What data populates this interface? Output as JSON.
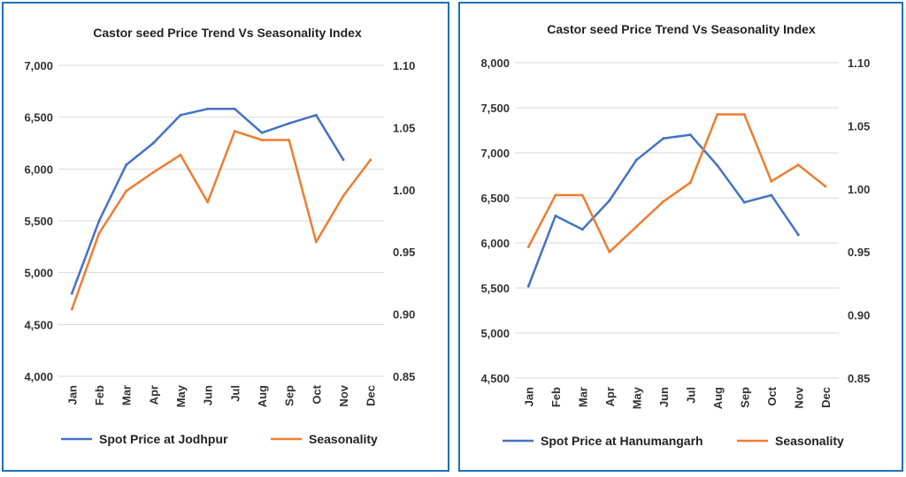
{
  "colors": {
    "primary": "#4472c4",
    "seasonality": "#ed7d31",
    "border": "#1f6fb8"
  },
  "chart_data": [
    {
      "type": "line",
      "title": "Castor seed Price Trend Vs Seasonality Index",
      "categories": [
        "Jan",
        "Feb",
        "Mar",
        "Apr",
        "May",
        "Jun",
        "Jul",
        "Aug",
        "Sep",
        "Oct",
        "Nov",
        "Dec"
      ],
      "y_left": {
        "range": [
          4000,
          7000
        ],
        "ticks": [
          "4,000",
          "4,500",
          "5,000",
          "5,500",
          "6,000",
          "6,500",
          "7,000"
        ],
        "tick_values": [
          4000,
          4500,
          5000,
          5500,
          6000,
          6500,
          7000
        ]
      },
      "y_right": {
        "range": [
          0.85,
          1.1
        ],
        "ticks": [
          "0.85",
          "0.90",
          "0.95",
          "1.00",
          "1.05",
          "1.10"
        ],
        "tick_values": [
          0.85,
          0.9,
          0.95,
          1.0,
          1.05,
          1.1
        ]
      },
      "grid": true,
      "legend_position": "bottom",
      "series": [
        {
          "name": "Spot Price at Jodhpur",
          "axis": "left",
          "color": "#4472c4",
          "values": [
            4800,
            5500,
            6040,
            6250,
            6520,
            6580,
            6580,
            6350,
            6440,
            6520,
            6090,
            null
          ]
        },
        {
          "name": "Seasonality",
          "axis": "right",
          "color": "#ed7d31",
          "values": [
            0.904,
            0.965,
            0.999,
            1.014,
            1.028,
            0.99,
            1.047,
            1.04,
            1.04,
            0.958,
            0.995,
            1.024
          ]
        }
      ]
    },
    {
      "type": "line",
      "title": "Castor seed Price Trend Vs Seasonality Index",
      "categories": [
        "Jan",
        "Feb",
        "Mar",
        "Apr",
        "May",
        "Jun",
        "Jul",
        "Aug",
        "Sep",
        "Oct",
        "Nov",
        "Dec"
      ],
      "y_left": {
        "range": [
          4500,
          8000
        ],
        "ticks": [
          "4,500",
          "5,000",
          "5,500",
          "6,000",
          "6,500",
          "7,000",
          "7,500",
          "8,000"
        ],
        "tick_values": [
          4500,
          5000,
          5500,
          6000,
          6500,
          7000,
          7500,
          8000
        ]
      },
      "y_right": {
        "range": [
          0.85,
          1.1
        ],
        "ticks": [
          "0.85",
          "0.90",
          "0.95",
          "1.00",
          "1.05",
          "1.10"
        ],
        "tick_values": [
          0.85,
          0.9,
          0.95,
          1.0,
          1.05,
          1.1
        ]
      },
      "grid": true,
      "legend_position": "bottom",
      "series": [
        {
          "name": "Spot Price at Hanumangarh",
          "axis": "left",
          "color": "#4472c4",
          "values": [
            5520,
            6300,
            6150,
            6470,
            6920,
            7160,
            7200,
            6860,
            6450,
            6530,
            6090,
            null
          ]
        },
        {
          "name": "Seasonality",
          "axis": "right",
          "color": "#ed7d31",
          "values": [
            0.954,
            0.995,
            0.995,
            0.95,
            0.97,
            0.99,
            1.005,
            1.059,
            1.059,
            1.006,
            1.019,
            1.002
          ]
        }
      ]
    }
  ]
}
